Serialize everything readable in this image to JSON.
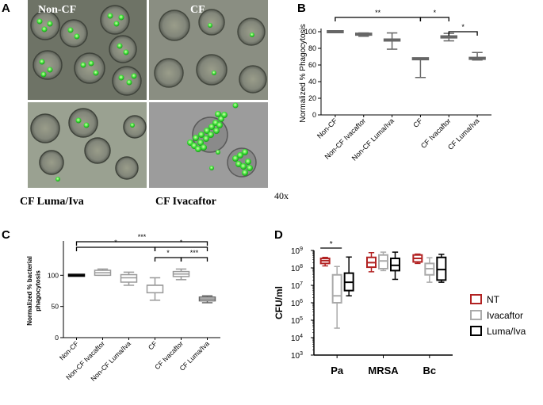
{
  "panels": {
    "A": {
      "letter": "A",
      "images": [
        {
          "label": "Non-CF",
          "label_color": "white"
        },
        {
          "label": "CF",
          "label_color": "white"
        },
        {
          "label": "CF Luma/Iva",
          "label_color": "black"
        },
        {
          "label": "CF Ivacaftor",
          "label_color": "black"
        }
      ],
      "magnification": "40x"
    },
    "B": {
      "letter": "B"
    },
    "C": {
      "letter": "C"
    },
    "D": {
      "letter": "D"
    }
  },
  "chart_data": [
    {
      "id": "B",
      "type": "boxplot",
      "title": "",
      "xlabel": "",
      "ylabel": "Normalized % Phagocytosis",
      "ylim": [
        0,
        100
      ],
      "yticks": [
        0,
        20,
        40,
        60,
        80,
        100
      ],
      "categories": [
        "Non-CF",
        "Non-CF Ivacaftor",
        "Non-CF Luma/Iva",
        "CF",
        "CF Ivacaftor",
        "CF Luma/Iva"
      ],
      "boxes": [
        {
          "min": 100,
          "q1": 100,
          "median": 100,
          "q3": 100,
          "max": 100,
          "color": "#666666"
        },
        {
          "min": 94.5,
          "q1": 95.5,
          "median": 96,
          "q3": 97,
          "max": 98.5,
          "color": "#666666"
        },
        {
          "min": 79,
          "q1": 89,
          "median": 89.5,
          "q3": 90,
          "max": 98.5,
          "color": "#666666"
        },
        {
          "min": 45,
          "q1": 66,
          "median": 66.5,
          "q3": 67.5,
          "max": 68,
          "color": "#666666"
        },
        {
          "min": 89,
          "q1": 92.5,
          "median": 93.5,
          "q3": 95,
          "max": 98,
          "color": "#666666"
        },
        {
          "min": 66,
          "q1": 66.5,
          "median": 67,
          "q3": 68,
          "max": 75,
          "color": "#666666"
        }
      ],
      "significance": [
        {
          "from": 0,
          "to": 3,
          "label": "**",
          "level": 0
        },
        {
          "from": 3,
          "to": 4,
          "label": "*",
          "level": 1
        },
        {
          "from": 4,
          "to": 5,
          "label": "*",
          "level": 2
        }
      ]
    },
    {
      "id": "C",
      "type": "boxplot",
      "title": "",
      "xlabel": "",
      "ylabel": "Normalized % bacterial phagocytosis",
      "ylabel_lines": [
        "Normalized % bacterial",
        "phagocytosis"
      ],
      "ylim": [
        0,
        150
      ],
      "yticks": [
        0,
        50,
        100
      ],
      "categories": [
        "Non-CF",
        "Non-CF Ivacaftor",
        "Non-CF Luma/Iva",
        "CF",
        "CF Ivacaftor",
        "CF Luma/Iva"
      ],
      "boxes": [
        {
          "min": 100,
          "q1": 100,
          "median": 100,
          "q3": 100,
          "max": 100,
          "color": "#000000"
        },
        {
          "min": 100,
          "q1": 100,
          "median": 104,
          "q3": 108,
          "max": 110,
          "color": "#999999"
        },
        {
          "min": 84,
          "q1": 89,
          "median": 96,
          "q3": 101,
          "max": 105,
          "color": "#999999"
        },
        {
          "min": 60,
          "q1": 72,
          "median": 84,
          "q3": 84,
          "max": 96,
          "color": "#999999"
        },
        {
          "min": 93,
          "q1": 98,
          "median": 102,
          "q3": 106,
          "max": 110,
          "color": "#999999"
        },
        {
          "min": 56,
          "q1": 59,
          "median": 62,
          "q3": 65,
          "max": 67,
          "color": "#666666"
        }
      ],
      "significance": [
        {
          "from": 0,
          "to": 5,
          "label": "***",
          "level": 3
        },
        {
          "from": 0,
          "to": 3,
          "label": "*",
          "level": 2
        },
        {
          "from": 3,
          "to": 5,
          "label": "*",
          "level": 2
        },
        {
          "from": 3,
          "to": 4,
          "label": "*",
          "level": 1
        },
        {
          "from": 4,
          "to": 5,
          "label": "***",
          "level": 1
        }
      ]
    },
    {
      "id": "D",
      "type": "boxplot",
      "title": "",
      "xlabel": "",
      "ylabel": "CFU/ml",
      "yscale": "log",
      "ylim": [
        1000,
        1000000000
      ],
      "ytick_exponents": [
        3,
        4,
        5,
        6,
        7,
        8,
        9
      ],
      "ytick_base": "10",
      "categories": [
        "Pa",
        "MRSA",
        "Bc"
      ],
      "series": [
        {
          "name": "NT",
          "color": "#b22222"
        },
        {
          "name": "Ivacaftor",
          "color": "#aaaaaa"
        },
        {
          "name": "Luma/Iva",
          "color": "#000000"
        }
      ],
      "legend_position": "right",
      "boxes": [
        {
          "group": 0,
          "series": 0,
          "min": 130000000,
          "q1": 180000000,
          "median": 260000000,
          "q3": 350000000,
          "max": 400000000
        },
        {
          "group": 0,
          "series": 1,
          "min": 35000,
          "q1": 1000000,
          "median": 2500000,
          "q3": 40000000,
          "max": 120000000
        },
        {
          "group": 0,
          "series": 2,
          "min": 2500000,
          "q1": 5000000,
          "median": 15000000,
          "q3": 50000000,
          "max": 420000000
        },
        {
          "group": 1,
          "series": 0,
          "min": 60000000,
          "q1": 110000000,
          "median": 200000000,
          "q3": 400000000,
          "max": 750000000
        },
        {
          "group": 1,
          "series": 1,
          "min": 70000000,
          "q1": 90000000,
          "median": 250000000,
          "q3": 550000000,
          "max": 800000000
        },
        {
          "group": 1,
          "series": 2,
          "min": 22000000,
          "q1": 70000000,
          "median": 140000000,
          "q3": 350000000,
          "max": 800000000
        },
        {
          "group": 2,
          "series": 0,
          "min": 180000000,
          "q1": 220000000,
          "median": 350000000,
          "q3": 550000000,
          "max": 620000000
        },
        {
          "group": 2,
          "series": 1,
          "min": 15000000,
          "q1": 40000000,
          "median": 90000000,
          "q3": 180000000,
          "max": 380000000
        },
        {
          "group": 2,
          "series": 2,
          "min": 15000000,
          "q1": 20000000,
          "median": 80000000,
          "q3": 400000000,
          "max": 600000000
        }
      ],
      "significance": [
        {
          "from_group": 0,
          "from_series": 0,
          "to_group": 0,
          "to_series": 1,
          "label": "*"
        }
      ]
    }
  ]
}
